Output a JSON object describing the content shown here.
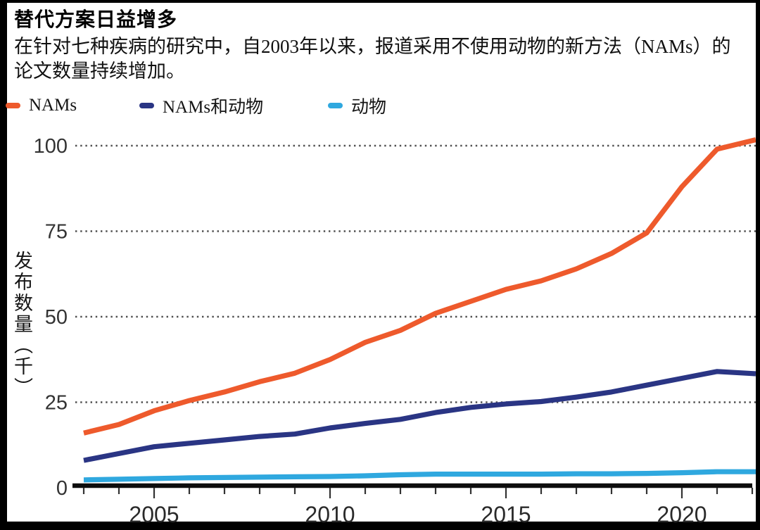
{
  "figure": {
    "title": "替代方案日益增多",
    "subtitle_line1": "在针对七种疾病的研究中，自2003年以来，报道采用不使用动物的新方法（NAMs）的",
    "subtitle_line2": "论文数量持续增加。",
    "legend": [
      {
        "key": "nams",
        "label": "NAMs",
        "color": "#ee5a2c"
      },
      {
        "key": "nams-and-animals",
        "label": "NAMs和动物",
        "color": "#2a3584"
      },
      {
        "key": "animals",
        "label": "动物",
        "color": "#2fa8df"
      }
    ]
  },
  "chart_data": {
    "type": "line",
    "title": "替代方案日益增多",
    "xlabel": "",
    "ylabel": "发布数量（千）",
    "x": [
      2003,
      2004,
      2005,
      2006,
      2007,
      2008,
      2009,
      2010,
      2011,
      2012,
      2013,
      2014,
      2015,
      2016,
      2017,
      2018,
      2019,
      2020,
      2021,
      2022
    ],
    "series": [
      {
        "name": "NAMs",
        "key": "nams",
        "color": "#ee5a2c",
        "values": [
          16,
          18.5,
          22.5,
          25.5,
          28,
          31,
          33.5,
          37.5,
          42.5,
          46,
          51,
          54.5,
          58,
          60.5,
          64,
          68.5,
          74.5,
          88,
          99,
          101.5
        ]
      },
      {
        "name": "NAMs和动物",
        "key": "nams-and-animals",
        "color": "#2a3584",
        "values": [
          8,
          10,
          12,
          13,
          14,
          15,
          15.7,
          17.5,
          18.8,
          20,
          22,
          23.5,
          24.5,
          25.2,
          26.5,
          28,
          30,
          32,
          34,
          33.4
        ]
      },
      {
        "name": "动物",
        "key": "animals",
        "color": "#2fa8df",
        "values": [
          2.3,
          2.5,
          2.7,
          2.9,
          3,
          3.1,
          3.2,
          3.3,
          3.5,
          3.8,
          4,
          4,
          4,
          4,
          4.1,
          4.1,
          4.2,
          4.4,
          4.7,
          4.7
        ]
      }
    ],
    "ylim": [
      0,
      105
    ],
    "xlim": [
      2003,
      2022.2
    ],
    "y_ticks": [
      0,
      25,
      50,
      75,
      100
    ],
    "x_ticks_major": [
      2005,
      2010,
      2015,
      2020
    ],
    "x_tick_labels": [
      "2005",
      "2010",
      "2015",
      "2020"
    ],
    "x_ticks_minor_every_year": true,
    "grid": "horizontal-dotted",
    "legend_position": "top-left"
  },
  "colors": {
    "frame_border": "#000000",
    "canvas_background": "#ffffff",
    "gridline": "#4f4f4f",
    "axis_line": "#0d0d0d",
    "tick_text": "#2a2a2a",
    "title_text": "#000000",
    "body_text": "#101010"
  }
}
